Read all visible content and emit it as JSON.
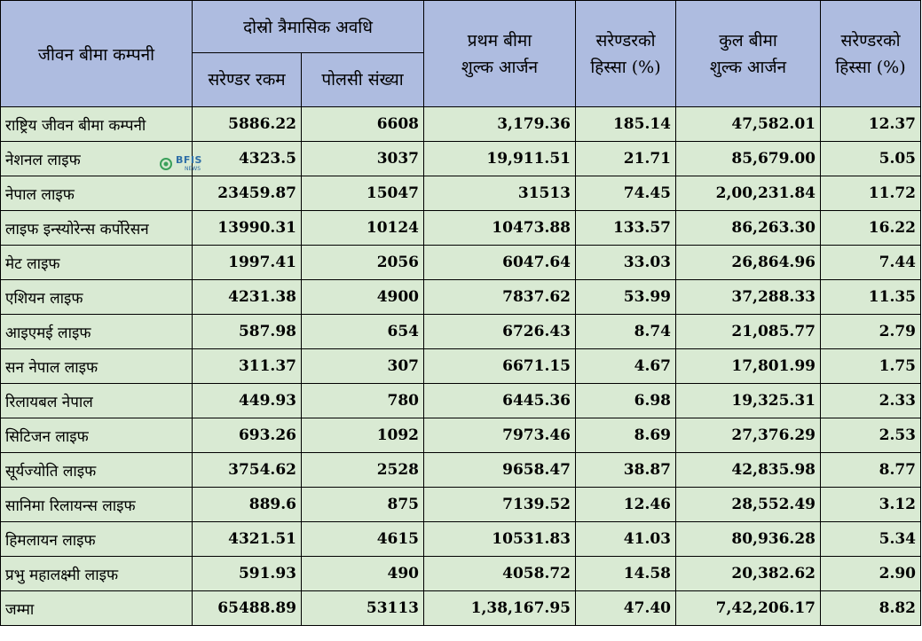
{
  "header": {
    "company": "जीवन बीमा कम्पनी",
    "quarter": "दोस्रो त्रैमासिक अवधि",
    "surrender_amount": "सरेण्डर रकम",
    "policy_count": "पोलसी संख्या",
    "first_premium_l1": "प्रथम बीमा",
    "first_premium_l2": "शुल्क आर्जन",
    "surrender_share_1_l1": "सरेण्डरको",
    "surrender_share_1_l2": "हिस्सा (%)",
    "total_premium_l1": "कुल बीमा",
    "total_premium_l2": "शुल्क आर्जन",
    "surrender_share_2_l1": "सरेण्डरको",
    "surrender_share_2_l2": "हिस्सा (%)"
  },
  "rows": [
    {
      "name": "राष्ट्रिय जीवन बीमा कम्पनी",
      "amount": "5886.22",
      "policies": "6608",
      "first": "3,179.36",
      "share1": "185.14",
      "total": "47,582.01",
      "share2": "12.37"
    },
    {
      "name": "नेशनल लाइफ",
      "amount": "4323.5",
      "policies": "3037",
      "first": "19,911.51",
      "share1": "21.71",
      "total": "85,679.00",
      "share2": "5.05"
    },
    {
      "name": "नेपाल लाइफ",
      "amount": "23459.87",
      "policies": "15047",
      "first": "31513",
      "share1": "74.45",
      "total": "2,00,231.84",
      "share2": "11.72"
    },
    {
      "name": "लाइफ इन्स्योरेन्स कर्पोरेसन",
      "amount": "13990.31",
      "policies": "10124",
      "first": "10473.88",
      "share1": "133.57",
      "total": "86,263.30",
      "share2": "16.22"
    },
    {
      "name": "मेट लाइफ",
      "amount": "1997.41",
      "policies": "2056",
      "first": "6047.64",
      "share1": "33.03",
      "total": "26,864.96",
      "share2": "7.44"
    },
    {
      "name": "एशियन लाइफ",
      "amount": "4231.38",
      "policies": "4900",
      "first": "7837.62",
      "share1": "53.99",
      "total": "37,288.33",
      "share2": "11.35"
    },
    {
      "name": "आइएमई लाइफ",
      "amount": "587.98",
      "policies": "654",
      "first": "6726.43",
      "share1": "8.74",
      "total": "21,085.77",
      "share2": "2.79"
    },
    {
      "name": "सन नेपाल लाइफ",
      "amount": "311.37",
      "policies": "307",
      "first": "6671.15",
      "share1": "4.67",
      "total": "17,801.99",
      "share2": "1.75"
    },
    {
      "name": "रिलायबल नेपाल",
      "amount": "449.93",
      "policies": "780",
      "first": "6445.36",
      "share1": "6.98",
      "total": "19,325.31",
      "share2": "2.33"
    },
    {
      "name": "सिटिजन लाइफ",
      "amount": "693.26",
      "policies": "1092",
      "first": "7973.46",
      "share1": "8.69",
      "total": "27,376.29",
      "share2": "2.53"
    },
    {
      "name": "सूर्यज्योति लाइफ",
      "amount": "3754.62",
      "policies": "2528",
      "first": "9658.47",
      "share1": "38.87",
      "total": "42,835.98",
      "share2": "8.77"
    },
    {
      "name": "सानिमा रिलायन्स लाइफ",
      "amount": "889.6",
      "policies": "875",
      "first": "7139.52",
      "share1": "12.46",
      "total": "28,552.49",
      "share2": "3.12"
    },
    {
      "name": "हिमलायन लाइफ",
      "amount": "4321.51",
      "policies": "4615",
      "first": "10531.83",
      "share1": "41.03",
      "total": "80,936.28",
      "share2": "5.34"
    },
    {
      "name": "प्रभु महालक्ष्मी लाइफ",
      "amount": "591.93",
      "policies": "490",
      "first": "4058.72",
      "share1": "14.58",
      "total": "20,382.62",
      "share2": "2.90"
    }
  ],
  "total_row": {
    "name": "जम्मा",
    "amount": "65488.89",
    "policies": "53113",
    "first": "1,38,167.95",
    "share1": "47.40",
    "total": "7,42,206.17",
    "share2": "8.82"
  },
  "watermark": {
    "text": "BFIS",
    "sub": "NEWS"
  }
}
